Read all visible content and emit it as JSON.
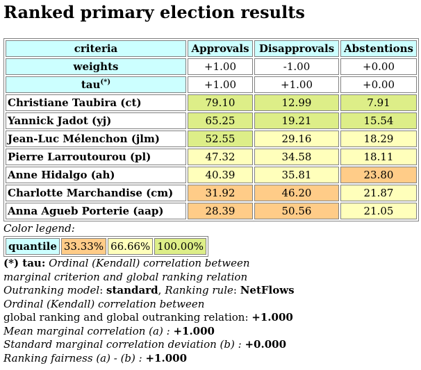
{
  "title": "Ranked primary election results",
  "table": {
    "criteria_label": "criteria",
    "columns": [
      "Approvals",
      "Disapprovals",
      "Abstentions"
    ],
    "weights_label": "weights",
    "weights": [
      "+1.00",
      "-1.00",
      "+0.00"
    ],
    "tau_label": "tau",
    "tau_sup": "(*)",
    "tau": [
      "+1.00",
      "+1.00",
      "+0.00"
    ],
    "rows": [
      {
        "name": "Christiane Taubira (ct)",
        "values": [
          "79.10",
          "12.99",
          "7.91"
        ],
        "levels": [
          3,
          3,
          3
        ]
      },
      {
        "name": "Yannick Jadot (yj)",
        "values": [
          "65.25",
          "19.21",
          "15.54"
        ],
        "levels": [
          3,
          3,
          3
        ]
      },
      {
        "name": "Jean-Luc Mélenchon (jlm)",
        "values": [
          "52.55",
          "29.16",
          "18.29"
        ],
        "levels": [
          3,
          2,
          2
        ]
      },
      {
        "name": "Pierre Larroutourou (pl)",
        "values": [
          "47.32",
          "34.58",
          "18.11"
        ],
        "levels": [
          2,
          2,
          2
        ]
      },
      {
        "name": "Anne Hidalgo (ah)",
        "values": [
          "40.39",
          "35.81",
          "23.80"
        ],
        "levels": [
          2,
          2,
          1
        ]
      },
      {
        "name": "Charlotte Marchandise (cm)",
        "values": [
          "31.92",
          "46.20",
          "21.87"
        ],
        "levels": [
          1,
          1,
          2
        ]
      },
      {
        "name": "Anna Agueb Porterie (aap)",
        "values": [
          "28.39",
          "50.56",
          "21.05"
        ],
        "levels": [
          1,
          1,
          2
        ]
      }
    ]
  },
  "colors": {
    "header": "#ccffff",
    "level_1": "#ffcc88",
    "level_2": "#ffffbb",
    "level_3": "#ddee88"
  },
  "legend": {
    "title": "Color legend:",
    "label": "quantile",
    "items": [
      "33.33%",
      "66.66%",
      "100.00%"
    ]
  },
  "notes": {
    "tau_note_bold": "(*) tau:",
    "tau_note_text1": " Ordinal (Kendall) correlation between",
    "tau_note_text2": "marginal criterion and global ranking relation",
    "model_label": "Outranking model",
    "model_value": "standard",
    "rule_label": "Ranking rule",
    "rule_value": "NetFlows",
    "corr_line1": "Ordinal (Kendall) correlation between",
    "corr_line2_text": "global ranking and global outranking relation:",
    "corr_value": "+1.000",
    "mean_label": "Mean marginal correlation (a) :",
    "mean_value": "+1.000",
    "std_label": "Standard marginal correlation deviation (b) :",
    "std_value": "+0.000",
    "fair_label": "Ranking fairness (a) - (b) :",
    "fair_value": "+1.000"
  }
}
